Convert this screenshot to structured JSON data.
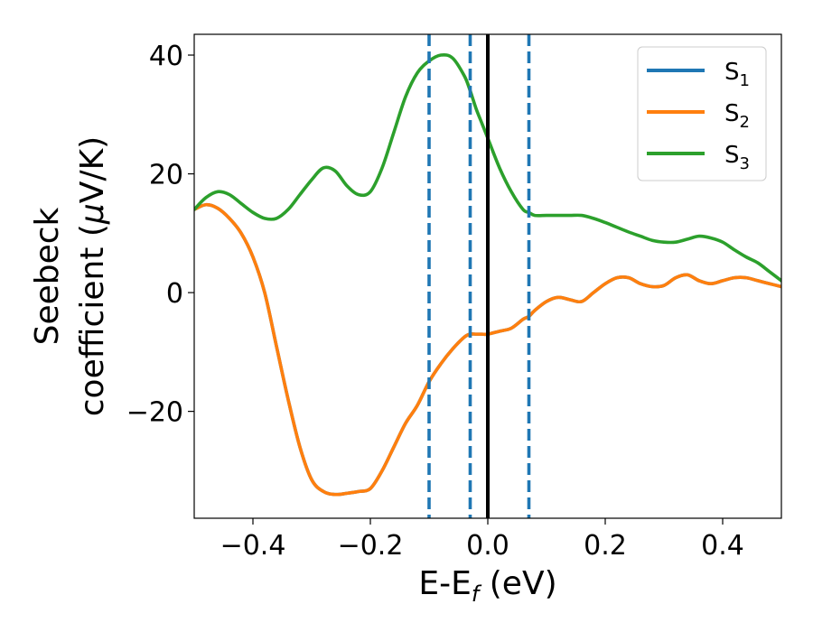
{
  "chart_data": {
    "type": "line",
    "xlabel": {
      "main": "E-E",
      "sub": "f",
      "unit": " (eV)"
    },
    "ylabel": {
      "line1": "Seebeck",
      "line2_prefix": "coefficient  (",
      "mu": "μ",
      "line2_suffix": "V/K)"
    },
    "xlim": [
      -0.5,
      0.5
    ],
    "ylim": [
      -38,
      43.5
    ],
    "xticks": [
      -0.4,
      -0.2,
      0.0,
      0.2,
      0.4
    ],
    "xtick_labels": [
      "−0.4",
      "−0.2",
      "0.0",
      "0.2",
      "0.4"
    ],
    "yticks": [
      -20,
      0,
      20,
      40
    ],
    "ytick_labels": [
      "−20",
      "0",
      "20",
      "40"
    ],
    "grid": false,
    "legend_placement": "top-right",
    "vlines": [
      {
        "x": -0.1,
        "style": "dashed",
        "color": "#1f77b4"
      },
      {
        "x": -0.03,
        "style": "dashed",
        "color": "#1f77b4"
      },
      {
        "x": 0.07,
        "style": "dashed",
        "color": "#1f77b4"
      },
      {
        "x": 0.0,
        "style": "solid",
        "color": "#000000"
      }
    ],
    "series": [
      {
        "name": "S",
        "sub": "1",
        "color": "#1f77b4",
        "x": [
          -0.5,
          -0.48,
          -0.46,
          -0.44,
          -0.42,
          -0.4,
          -0.38,
          -0.36,
          -0.34,
          -0.32,
          -0.3,
          -0.28,
          -0.26,
          -0.24,
          -0.22,
          -0.2,
          -0.18,
          -0.16,
          -0.14,
          -0.12,
          -0.1,
          -0.08,
          -0.06,
          -0.04,
          -0.03,
          -0.02,
          -0.01,
          0.0,
          0.02,
          0.04,
          0.06,
          0.07,
          0.08,
          0.1,
          0.12,
          0.14,
          0.16,
          0.18,
          0.2,
          0.22,
          0.24,
          0.26,
          0.28,
          0.3,
          0.32,
          0.34,
          0.36,
          0.38,
          0.4,
          0.42,
          0.44,
          0.46,
          0.48,
          0.5
        ],
        "y": [
          14,
          14.8,
          14.2,
          12.5,
          10,
          6,
          0,
          -9,
          -18,
          -26,
          -31.5,
          -33.5,
          -34,
          -33.8,
          -33.5,
          -33,
          -30,
          -26,
          -22,
          -19,
          -15,
          -12,
          -9.5,
          -7.5,
          -7,
          -7,
          -7,
          -7,
          -6.5,
          -6,
          -4.5,
          -4,
          -3,
          -1.5,
          -0.8,
          -1.2,
          -1.5,
          0,
          1.5,
          2.5,
          2.5,
          1.5,
          1,
          1.2,
          2.5,
          3,
          2,
          1.5,
          2,
          2.5,
          2.5,
          2,
          1.5,
          1
        ]
      },
      {
        "name": "S",
        "sub": "2",
        "color": "#ff7f0e",
        "x": [
          -0.5,
          -0.48,
          -0.46,
          -0.44,
          -0.42,
          -0.4,
          -0.38,
          -0.36,
          -0.34,
          -0.32,
          -0.3,
          -0.28,
          -0.26,
          -0.24,
          -0.22,
          -0.2,
          -0.18,
          -0.16,
          -0.14,
          -0.12,
          -0.1,
          -0.08,
          -0.06,
          -0.04,
          -0.03,
          -0.02,
          -0.01,
          0.0,
          0.02,
          0.04,
          0.06,
          0.07,
          0.08,
          0.1,
          0.12,
          0.14,
          0.16,
          0.18,
          0.2,
          0.22,
          0.24,
          0.26,
          0.28,
          0.3,
          0.32,
          0.34,
          0.36,
          0.38,
          0.4,
          0.42,
          0.44,
          0.46,
          0.48,
          0.5
        ],
        "y": [
          14,
          14.8,
          14.2,
          12.5,
          10,
          6,
          0,
          -9,
          -18,
          -26,
          -31.5,
          -33.5,
          -34,
          -33.8,
          -33.5,
          -33,
          -30,
          -26,
          -22,
          -19,
          -15,
          -12,
          -9.5,
          -7.5,
          -7,
          -7,
          -7,
          -7,
          -6.5,
          -6,
          -4.5,
          -4,
          -3,
          -1.5,
          -0.8,
          -1.2,
          -1.5,
          0,
          1.5,
          2.5,
          2.5,
          1.5,
          1,
          1.2,
          2.5,
          3,
          2,
          1.5,
          2,
          2.5,
          2.5,
          2,
          1.5,
          1
        ]
      },
      {
        "name": "S",
        "sub": "3",
        "color": "#2ca02c",
        "x": [
          -0.5,
          -0.48,
          -0.46,
          -0.44,
          -0.42,
          -0.4,
          -0.38,
          -0.36,
          -0.34,
          -0.32,
          -0.3,
          -0.28,
          -0.26,
          -0.24,
          -0.22,
          -0.2,
          -0.18,
          -0.16,
          -0.14,
          -0.12,
          -0.1,
          -0.08,
          -0.06,
          -0.04,
          -0.03,
          -0.02,
          -0.01,
          0.0,
          0.02,
          0.04,
          0.06,
          0.07,
          0.08,
          0.1,
          0.12,
          0.14,
          0.16,
          0.18,
          0.2,
          0.22,
          0.24,
          0.26,
          0.28,
          0.3,
          0.32,
          0.34,
          0.36,
          0.38,
          0.4,
          0.42,
          0.44,
          0.46,
          0.48,
          0.5
        ],
        "y": [
          14,
          16,
          17,
          16.5,
          15,
          13.5,
          12.5,
          12.5,
          14,
          16.5,
          19,
          21,
          20.5,
          18,
          16.5,
          17,
          21,
          27,
          33,
          37,
          39,
          40,
          39.5,
          36.5,
          34,
          31,
          28.5,
          26,
          21,
          17,
          14,
          13.5,
          13,
          13,
          13,
          13,
          13,
          12.5,
          11.8,
          11,
          10.2,
          9.5,
          8.8,
          8.5,
          8.5,
          9,
          9.5,
          9.2,
          8.5,
          7.2,
          6,
          5,
          3.5,
          2
        ]
      }
    ]
  }
}
